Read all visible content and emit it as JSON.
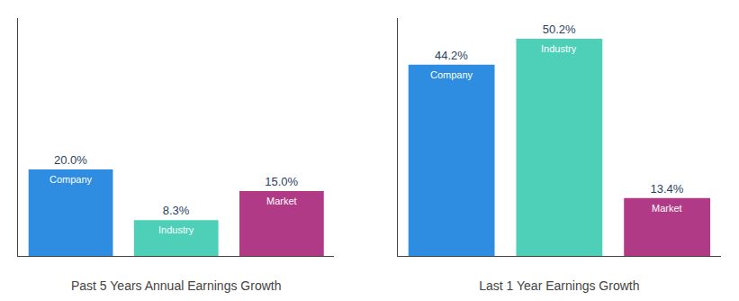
{
  "chart_data": [
    {
      "type": "bar",
      "title": "Past 5 Years Annual Earnings Growth",
      "categories": [
        "Company",
        "Industry",
        "Market"
      ],
      "values": [
        20.0,
        8.3,
        15.0
      ],
      "value_labels": [
        "20.0%",
        "8.3%",
        "15.0%"
      ],
      "colors": [
        "#2e8de0",
        "#4dcfb8",
        "#b03a85"
      ],
      "ylim": [
        0,
        55
      ],
      "grid": false,
      "data_labels": true,
      "tick_labels": false
    },
    {
      "type": "bar",
      "title": "Last 1 Year Earnings Growth",
      "categories": [
        "Company",
        "Industry",
        "Market"
      ],
      "values": [
        44.2,
        50.2,
        13.4
      ],
      "value_labels": [
        "44.2%",
        "50.2%",
        "13.4%"
      ],
      "colors": [
        "#2e8de0",
        "#4dcfb8",
        "#b03a85"
      ],
      "ylim": [
        0,
        55
      ],
      "grid": false,
      "data_labels": true,
      "tick_labels": false
    }
  ]
}
